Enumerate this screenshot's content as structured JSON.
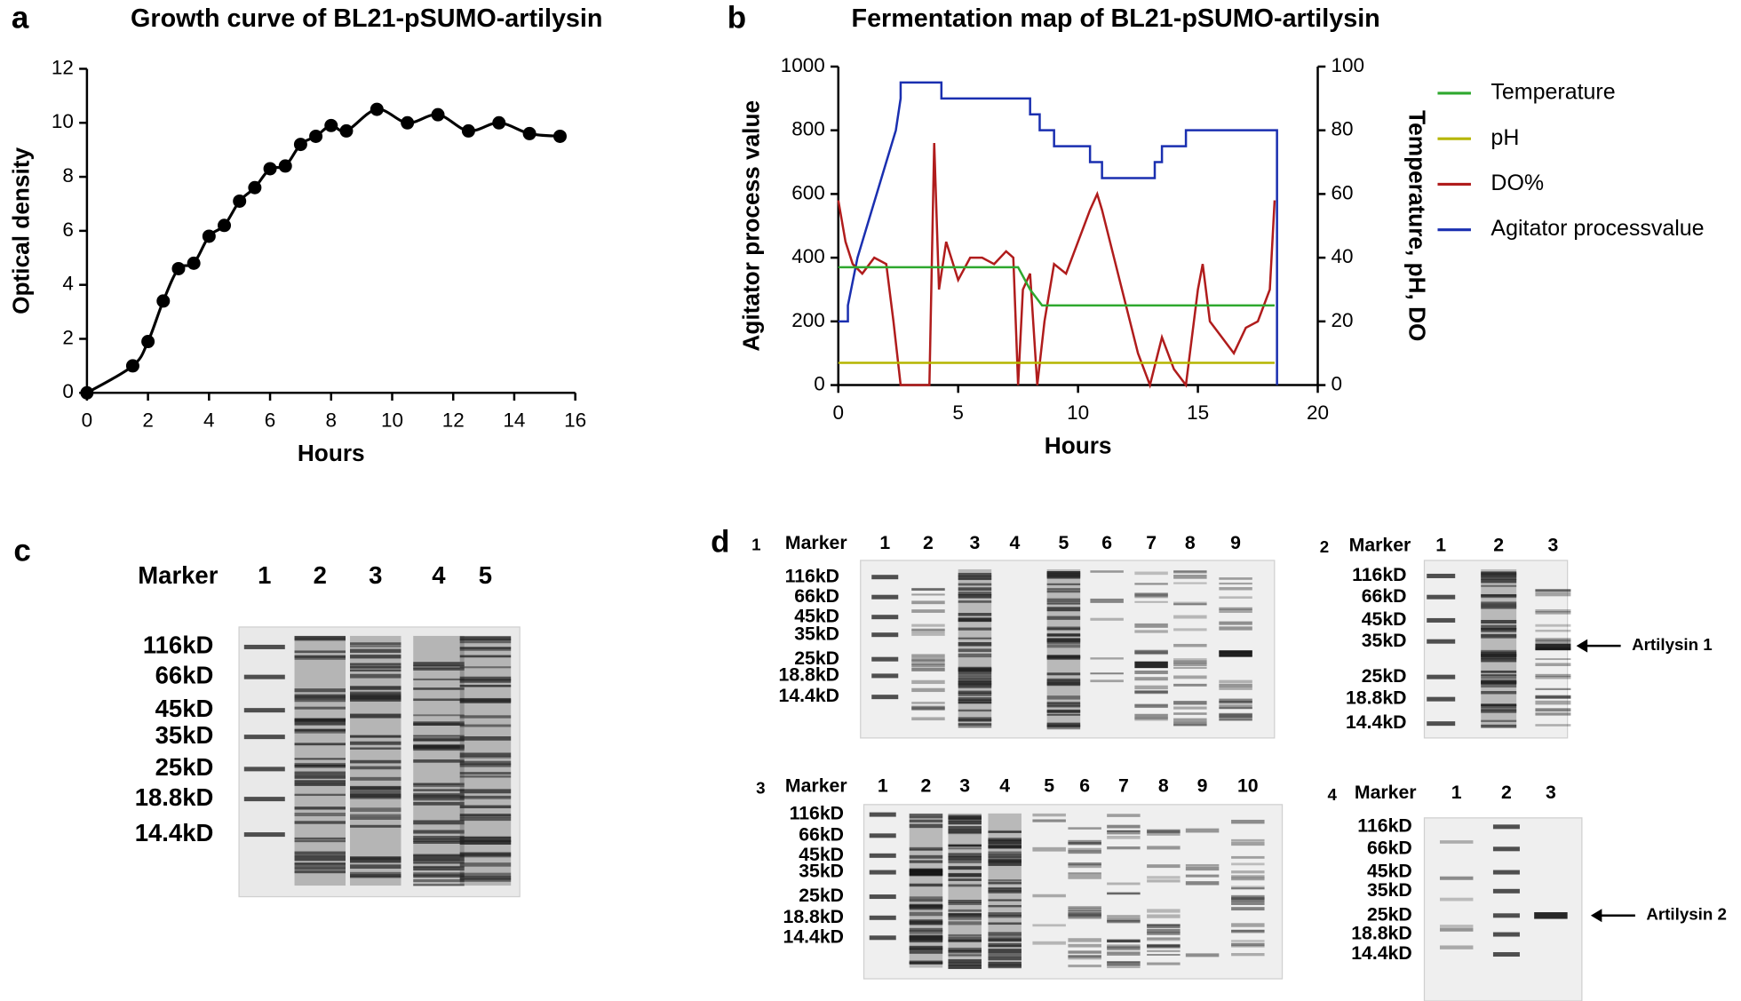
{
  "panel_letters": [
    "a",
    "b",
    "c",
    "d"
  ],
  "chart_data": [
    {
      "type": "line",
      "title": "Growth curve of BL21-pSUMO-artilysin",
      "xlabel": "Hours",
      "ylabel": "Optical density",
      "x": [
        0,
        1.5,
        2,
        2.5,
        3,
        3.5,
        4,
        4.5,
        5,
        5.5,
        6,
        6.5,
        7,
        7.5,
        8,
        8.5,
        9.5,
        10.5,
        11.5,
        12.5,
        13.5,
        14.5,
        15.5
      ],
      "values": [
        0,
        1,
        1.9,
        3.4,
        4.6,
        4.8,
        5.8,
        6.2,
        7.1,
        7.6,
        8.3,
        8.4,
        9.2,
        9.5,
        9.9,
        9.7,
        10.5,
        10,
        10.3,
        9.7,
        10,
        9.6,
        9.5
      ],
      "color": "#000000",
      "markers": true,
      "smooth": true,
      "xlim": [
        0,
        16
      ],
      "xticks": [
        0,
        2,
        4,
        6,
        8,
        10,
        12,
        14,
        16
      ],
      "ylim": [
        0,
        12
      ],
      "yticks": [
        0,
        2,
        4,
        6,
        8,
        10,
        12
      ]
    },
    {
      "type": "line",
      "title": "Fermentation map of BL21-pSUMO-artilysin",
      "xlabel": "Hours",
      "ylabel": "Agitator process value",
      "y2label": "Temperature, pH, DO",
      "legend": "right",
      "xlim": [
        0,
        20
      ],
      "xticks": [
        0,
        5,
        10,
        15,
        20
      ],
      "ylim": [
        0,
        1000
      ],
      "yticks": [
        0,
        200,
        400,
        600,
        800,
        1000
      ],
      "y2lim": [
        0,
        100
      ],
      "y2ticks": [
        0,
        20,
        40,
        60,
        80,
        100
      ],
      "series": [
        {
          "name": "Temperature",
          "color": "#2ea82e",
          "axis": "y2",
          "x": [
            0,
            7.5,
            8,
            8.5,
            18.2
          ],
          "values": [
            37,
            37,
            30,
            25,
            25
          ]
        },
        {
          "name": "pH",
          "color": "#b5b500",
          "axis": "y2",
          "x": [
            0,
            18.2
          ],
          "values": [
            7,
            7
          ]
        },
        {
          "name": "DO%",
          "color": "#b01c1c",
          "axis": "y2",
          "x": [
            0,
            0.3,
            0.6,
            1,
            1.5,
            2,
            2.3,
            2.6,
            3,
            3.5,
            3.8,
            4,
            4.2,
            4.5,
            5,
            5.5,
            6,
            6.5,
            7,
            7.3,
            7.5,
            7.7,
            8,
            8.3,
            8.6,
            9,
            9.5,
            10,
            10.5,
            10.8,
            11,
            11.5,
            12,
            12.5,
            13,
            13.5,
            14,
            14.5,
            15,
            15.2,
            15.5,
            16,
            16.5,
            17,
            17.5,
            18,
            18.2
          ],
          "values": [
            58,
            45,
            38,
            35,
            40,
            38,
            20,
            0,
            0,
            0,
            0,
            76,
            30,
            45,
            33,
            40,
            40,
            38,
            42,
            40,
            0,
            30,
            35,
            0,
            20,
            38,
            35,
            45,
            55,
            60,
            55,
            40,
            25,
            10,
            0,
            15,
            5,
            0,
            30,
            38,
            20,
            15,
            10,
            18,
            20,
            30,
            58
          ]
        },
        {
          "name": "Agitator processvalue",
          "color": "#1a2fb0",
          "x": [
            0,
            0.4,
            0.4,
            0.8,
            1.2,
            1.6,
            2.0,
            2.4,
            2.6,
            2.6,
            4.3,
            4.3,
            8.0,
            8.0,
            8.4,
            8.4,
            9.0,
            9.0,
            10.5,
            10.5,
            11.0,
            11.0,
            13.2,
            13.2,
            13.5,
            13.5,
            14.5,
            14.5,
            18.3,
            18.3
          ],
          "values": [
            200,
            200,
            250,
            400,
            500,
            600,
            700,
            800,
            900,
            950,
            950,
            900,
            900,
            850,
            850,
            800,
            800,
            750,
            750,
            700,
            700,
            650,
            650,
            700,
            700,
            750,
            750,
            800,
            800,
            0
          ]
        }
      ]
    }
  ],
  "gels": [
    {
      "marker": "Marker",
      "lanes": [
        1,
        2,
        3,
        4,
        5
      ],
      "sizes": [
        "116kD",
        "66kD",
        "45kD",
        "35kD",
        "25kD",
        "18.8kD",
        "14.4kD"
      ]
    },
    {
      "number": 1,
      "marker": "Marker",
      "lanes": [
        1,
        2,
        3,
        4,
        5,
        6,
        7,
        8,
        9
      ],
      "sizes": [
        "116kD",
        "66kD",
        "45kD",
        "35kD",
        "25kD",
        "18.8kD",
        "14.4kD"
      ]
    },
    {
      "number": 2,
      "marker": "Marker",
      "lanes": [
        1,
        2,
        3
      ],
      "sizes": [
        "116kD",
        "66kD",
        "45kD",
        "35kD",
        "25kD",
        "18.8kD",
        "14.4kD"
      ],
      "annotation": "Artilysin 1"
    },
    {
      "number": 3,
      "marker": "Marker",
      "lanes": [
        1,
        2,
        3,
        4,
        5,
        6,
        7,
        8,
        9,
        10
      ],
      "sizes": [
        "116kD",
        "66kD",
        "45kD",
        "35kD",
        "25kD",
        "18.8kD",
        "14.4kD"
      ]
    },
    {
      "number": 4,
      "marker": "Marker",
      "lanes": [
        1,
        2,
        3
      ],
      "sizes": [
        "116kD",
        "66kD",
        "45kD",
        "35kD",
        "25kD",
        "18.8kD",
        "14.4kD"
      ],
      "annotation": "Artilysin 2"
    }
  ]
}
